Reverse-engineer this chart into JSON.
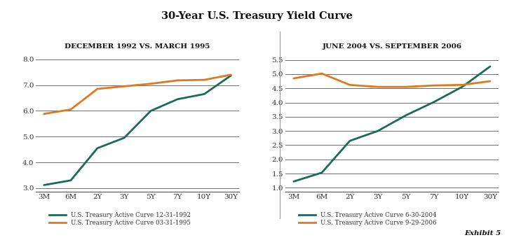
{
  "title": "30-Year U.S. Treasury Yield Curve",
  "title_bg_color": "#c8c8c0",
  "chart_bg_color": "#ffffff",
  "x_labels": [
    "3M",
    "6M",
    "2Y",
    "3Y",
    "5Y",
    "7Y",
    "10Y",
    "30Y"
  ],
  "left_title": "DECEMBER 1992 VS. MARCH 1995",
  "left_green_label": "U.S. Treasury Active Curve 12-31-1992",
  "left_orange_label": "U.S. Treasury Active Curve 03-31-1995",
  "left_green": [
    3.12,
    3.3,
    4.55,
    4.95,
    6.0,
    6.45,
    6.65,
    7.37
  ],
  "left_orange": [
    5.88,
    6.05,
    6.85,
    6.95,
    7.05,
    7.18,
    7.2,
    7.4
  ],
  "left_yticks": [
    3.0,
    4.0,
    5.0,
    6.0,
    7.0,
    8.0
  ],
  "left_ylim": [
    2.85,
    8.25
  ],
  "right_title": "JUNE 2004 VS. SEPTEMBER 2006",
  "right_green_label": "U.S. Treasury Active Curve 6-30-2004",
  "right_orange_label": "U.S. Treasury Active Curve 9-29-2006",
  "right_green": [
    1.22,
    1.53,
    2.65,
    3.0,
    3.55,
    4.02,
    4.55,
    5.27
  ],
  "right_orange": [
    4.85,
    5.02,
    4.62,
    4.55,
    4.55,
    4.6,
    4.62,
    4.75
  ],
  "right_yticks": [
    1.0,
    1.5,
    2.0,
    2.5,
    3.0,
    3.5,
    4.0,
    4.5,
    5.0,
    5.5
  ],
  "right_ylim": [
    0.85,
    5.75
  ],
  "green_color": "#1a6b5a",
  "orange_color": "#e07820",
  "line_width": 2.0,
  "exhibit_text": "Exhibit 5"
}
